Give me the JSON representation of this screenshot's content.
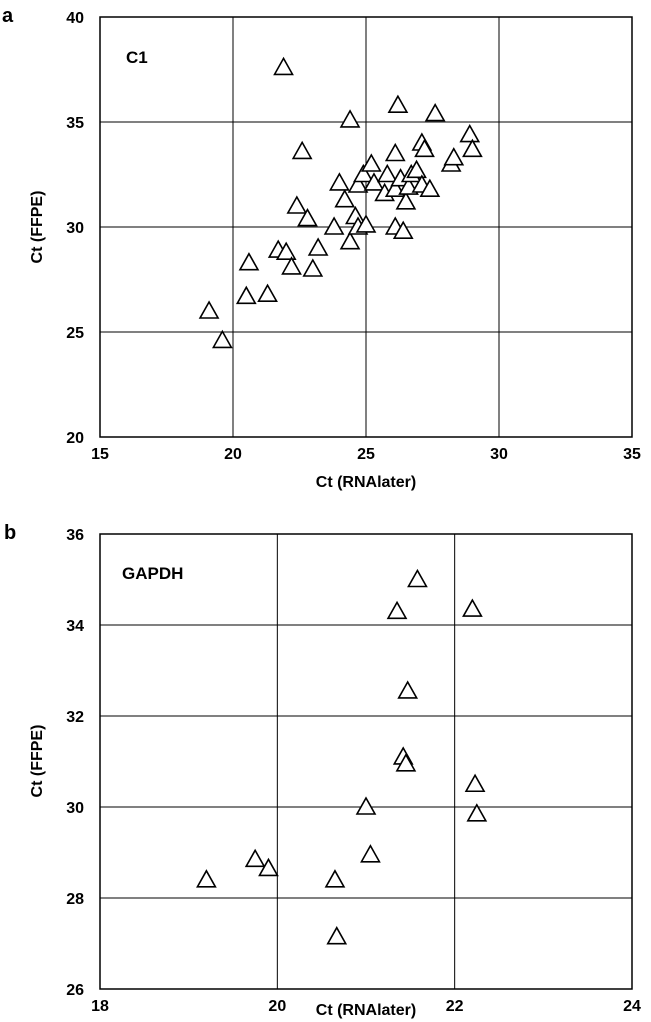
{
  "chart_data": [
    {
      "panel_label": "a",
      "type": "scatter",
      "series_label": "C1",
      "xlabel": "Ct (RNAlater)",
      "ylabel": "Ct (FFPE)",
      "xlim": [
        15,
        35
      ],
      "ylim": [
        20,
        40
      ],
      "xticks": [
        15,
        20,
        25,
        30,
        35
      ],
      "yticks": [
        20,
        25,
        30,
        35,
        40
      ],
      "grid": true,
      "marker": "open-triangle",
      "points": [
        [
          19.1,
          26.0
        ],
        [
          19.6,
          24.6
        ],
        [
          20.5,
          26.7
        ],
        [
          20.6,
          28.3
        ],
        [
          21.3,
          26.8
        ],
        [
          21.7,
          28.9
        ],
        [
          21.9,
          37.6
        ],
        [
          22.0,
          28.8
        ],
        [
          22.2,
          28.1
        ],
        [
          22.4,
          31.0
        ],
        [
          22.6,
          33.6
        ],
        [
          22.8,
          30.4
        ],
        [
          23.0,
          28.0
        ],
        [
          23.2,
          29.0
        ],
        [
          23.8,
          30.0
        ],
        [
          24.0,
          32.1
        ],
        [
          24.2,
          31.3
        ],
        [
          24.4,
          29.3
        ],
        [
          24.4,
          35.1
        ],
        [
          24.6,
          30.5
        ],
        [
          24.7,
          30.0
        ],
        [
          24.7,
          32.0
        ],
        [
          24.9,
          32.5
        ],
        [
          25.0,
          30.1
        ],
        [
          25.2,
          33.0
        ],
        [
          25.3,
          32.1
        ],
        [
          25.7,
          31.6
        ],
        [
          25.8,
          32.5
        ],
        [
          26.1,
          30.0
        ],
        [
          26.1,
          31.8
        ],
        [
          26.1,
          33.5
        ],
        [
          26.2,
          35.8
        ],
        [
          26.3,
          32.3
        ],
        [
          26.4,
          29.8
        ],
        [
          26.5,
          31.2
        ],
        [
          26.6,
          31.9
        ],
        [
          26.7,
          32.5
        ],
        [
          26.9,
          32.7
        ],
        [
          27.1,
          34.0
        ],
        [
          27.1,
          32.0
        ],
        [
          27.2,
          33.7
        ],
        [
          27.4,
          31.8
        ],
        [
          27.6,
          35.4
        ],
        [
          28.2,
          33.0
        ],
        [
          28.3,
          33.3
        ],
        [
          28.9,
          34.4
        ],
        [
          29.0,
          33.7
        ]
      ]
    },
    {
      "panel_label": "b",
      "type": "scatter",
      "series_label": "GAPDH",
      "xlabel": "Ct (RNAlater)",
      "ylabel": "Ct (FFPE)",
      "xlim": [
        18,
        24
      ],
      "ylim": [
        26,
        36
      ],
      "xticks": [
        18,
        20,
        22,
        24
      ],
      "yticks": [
        26,
        28,
        30,
        32,
        34,
        36
      ],
      "grid": true,
      "marker": "open-triangle",
      "points": [
        [
          19.2,
          28.4
        ],
        [
          19.75,
          28.85
        ],
        [
          19.9,
          28.65
        ],
        [
          20.65,
          28.4
        ],
        [
          20.67,
          27.15
        ],
        [
          21.0,
          30.0
        ],
        [
          21.05,
          28.95
        ],
        [
          21.35,
          34.3
        ],
        [
          21.42,
          31.1
        ],
        [
          21.45,
          30.95
        ],
        [
          21.47,
          32.55
        ],
        [
          21.58,
          35.0
        ],
        [
          22.2,
          34.35
        ],
        [
          22.23,
          30.5
        ],
        [
          22.25,
          29.85
        ]
      ]
    }
  ]
}
